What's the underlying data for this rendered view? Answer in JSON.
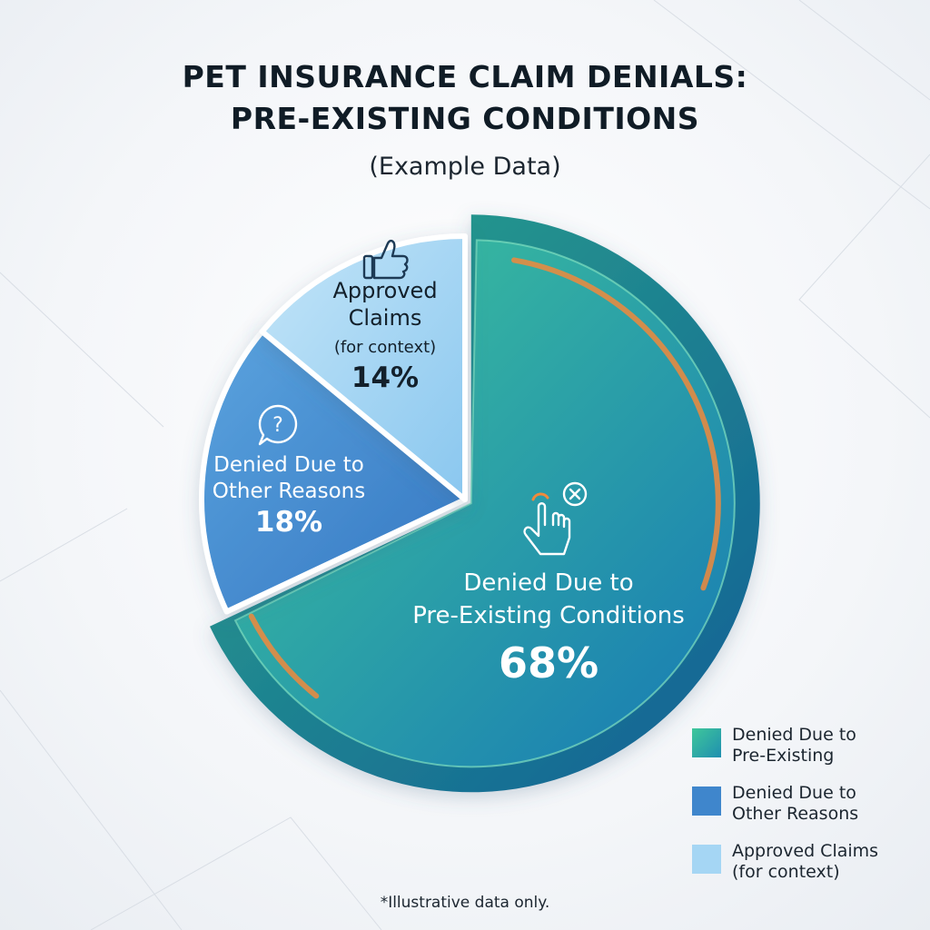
{
  "title_lines": [
    "PET INSURANCE CLAIM DENIALS:",
    "PRE-EXISTING CONDITIONS"
  ],
  "subtitle": "(Example Data)",
  "footnote": "*Illustrative data only.",
  "colors": {
    "pre_existing_start": "#3fc79a",
    "pre_existing_end": "#1779b5",
    "other_reasons": "#3f86cc",
    "approved": "#a5d6f4",
    "accent": "#f08a3c"
  },
  "chart_data": {
    "type": "pie",
    "title": "PET INSURANCE CLAIM DENIALS: PRE-EXISTING CONDITIONS",
    "subtitle": "(Example Data)",
    "legend_position": "bottom-right",
    "slices": [
      {
        "label": "Denied Due to Pre-Existing Conditions",
        "label_lines": [
          "Denied Due to",
          "Pre-Existing Conditions"
        ],
        "value": 68,
        "value_label": "68%",
        "icon": "hand-tap-cross-icon",
        "legend_label": "Denied Due to\nPre-Existing"
      },
      {
        "label": "Denied Due to Other Reasons",
        "label_lines": [
          "Denied Due to",
          "Other Reasons"
        ],
        "value": 18,
        "value_label": "18%",
        "icon": "question-bubble-icon",
        "legend_label": "Denied Due to\nOther Reasons"
      },
      {
        "label": "Approved Claims (for context)",
        "label_lines": [
          "Approved",
          "Claims",
          "(for context)"
        ],
        "value": 14,
        "value_label": "14%",
        "icon": "thumbs-up-icon",
        "legend_label": "Approved Claims\n(for context)"
      }
    ]
  }
}
